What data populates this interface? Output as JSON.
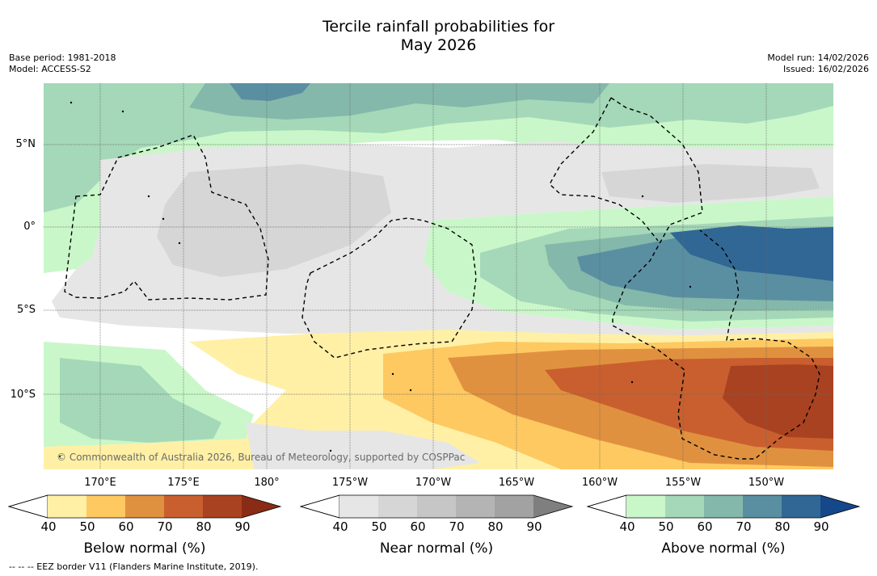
{
  "title_line1": "Tercile rainfall probabilities for",
  "title_line2": "May 2026",
  "base_period": "Base period: 1981-2018",
  "model": "Model: ACCESS-S2",
  "model_run": "Model run: 14/02/2026",
  "issued": "Issued: 16/02/2026",
  "lat_labels": [
    "5°N",
    "0°",
    "5°S",
    "10°S"
  ],
  "lon_labels": [
    "170°E",
    "175°E",
    "180°",
    "175°W",
    "170°W",
    "165°W",
    "160°W",
    "155°W",
    "150°W"
  ],
  "copyright": "© Commonwealth of Australia 2026, Bureau of Meteorology, supported by COSPPac",
  "footnote": "--  --  -- EEZ border V11 (Flanders Marine Institute, 2019).",
  "colorbars": [
    {
      "label": "Below normal (%)",
      "ticks": [
        "40",
        "50",
        "60",
        "70",
        "80",
        "90"
      ],
      "colors": [
        "#fff0a6",
        "#fec961",
        "#e0913f",
        "#c95f2e",
        "#a94221",
        "#8a2b15"
      ]
    },
    {
      "label": "Near normal (%)",
      "ticks": [
        "40",
        "50",
        "60",
        "70",
        "80",
        "90"
      ],
      "colors": [
        "#e6e6e6",
        "#d6d6d6",
        "#c6c6c6",
        "#b4b4b4",
        "#a2a2a2",
        "#7f7f7f"
      ]
    },
    {
      "label": "Above normal (%)",
      "ticks": [
        "40",
        "50",
        "60",
        "70",
        "80",
        "90"
      ],
      "colors": [
        "#c9f7c9",
        "#a4d8b8",
        "#84b8aa",
        "#5a8fa2",
        "#316794",
        "#15488a"
      ]
    }
  ],
  "legend_colors": {
    "white": "#ffffff",
    "above_40": "#c9f7c9",
    "above_50": "#a4d8b8",
    "above_60": "#84b8aa",
    "above_70": "#5a8fa2",
    "above_80": "#316794",
    "near_40": "#e6e6e6",
    "near_50": "#d6d6d6",
    "below_40": "#fff0a6",
    "below_50": "#fec961",
    "below_60": "#e0913f",
    "below_70": "#c95f2e",
    "below_80": "#a94221"
  }
}
